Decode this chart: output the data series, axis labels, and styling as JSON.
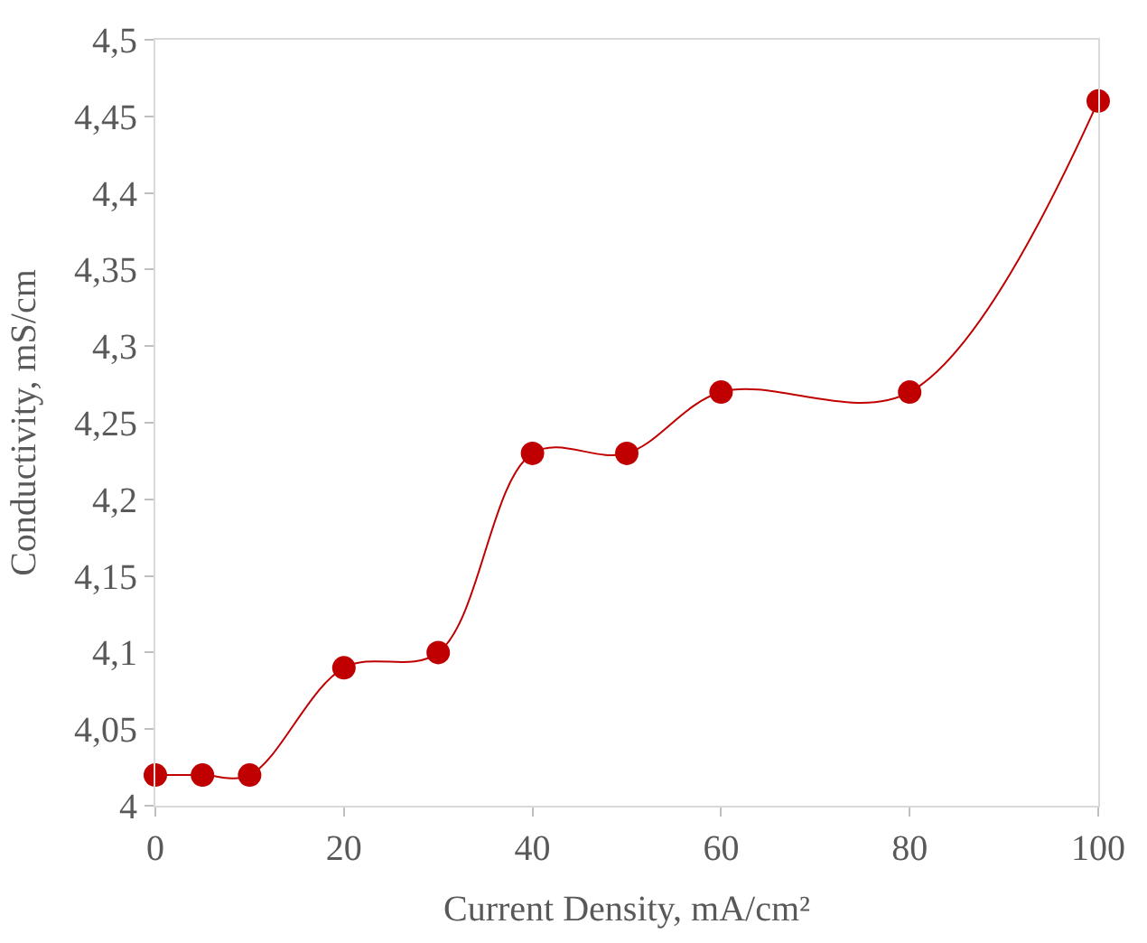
{
  "chart_data": {
    "type": "line",
    "xlabel": "Current Density, mA/cm²",
    "ylabel": "Conductivity, mS/cm",
    "x": [
      0,
      5,
      10,
      20,
      30,
      40,
      50,
      60,
      80,
      100
    ],
    "series": [
      {
        "color": "#c00000",
        "values": [
          4.02,
          4.02,
          4.02,
          4.09,
          4.1,
          4.23,
          4.23,
          4.27,
          4.27,
          4.46
        ]
      }
    ],
    "xlim": [
      0,
      100
    ],
    "xticks": [
      0,
      20,
      40,
      60,
      80,
      100
    ],
    "ylim": [
      4,
      4.5
    ],
    "yticks": [
      4,
      {
        "value": 4.05,
        "label": "4,05"
      },
      {
        "value": 4.1,
        "label": "4,1"
      },
      {
        "value": 4.15,
        "label": "4,15"
      },
      {
        "value": 4.2,
        "label": "4,2"
      },
      {
        "value": 4.25,
        "label": "4,25"
      },
      {
        "value": 4.3,
        "label": "4,3"
      },
      {
        "value": 4.35,
        "label": "4,35"
      },
      {
        "value": 4.4,
        "label": "4,4"
      },
      {
        "value": 4.45,
        "label": "4,45"
      },
      {
        "value": 4.5,
        "label": "4,5"
      }
    ],
    "marker": "circle"
  }
}
